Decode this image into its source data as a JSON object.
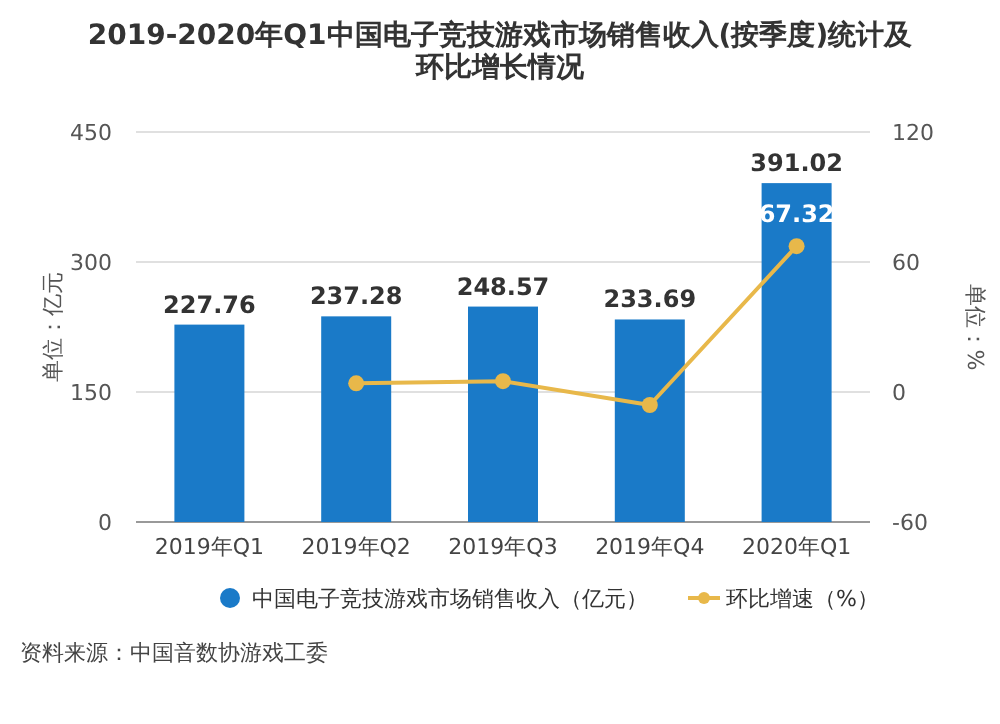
{
  "chart_data": {
    "type": "bar",
    "title": "2019-2020年Q1中国电子竞技游戏市场销售收入(按季度)统计及环比增长情况",
    "ylabel": "单位：亿元",
    "y2label": "单位：%",
    "categories": [
      "2019年Q1",
      "2019年Q2",
      "2019年Q3",
      "2019年Q4",
      "2020年Q1"
    ],
    "series": [
      {
        "name": "中国电子竞技游戏市场销售收入（亿元）",
        "color": "#1a7ac8",
        "values": [
          227.76,
          237.28,
          248.57,
          233.69,
          391.02
        ],
        "value_labels": [
          "227.76",
          "237.28",
          "248.57",
          "233.69",
          "391.02"
        ]
      },
      {
        "name": "环比增速（%）",
        "type": "line",
        "axis": "y2",
        "color": "#e8b84a",
        "marker": "circle",
        "values": [
          null,
          4,
          5,
          -6,
          67.32
        ],
        "value_labels": [
          null,
          null,
          null,
          null,
          "67.32"
        ]
      }
    ],
    "ylim": [
      0,
      450
    ],
    "yticks": [
      0,
      150,
      300,
      450
    ],
    "y2lim": [
      -60,
      120
    ],
    "y2ticks": [
      -60,
      0,
      60,
      120
    ],
    "grid": "y",
    "legend": "bottom",
    "annotations": [
      "资料来源：中国音数协游戏工委"
    ]
  }
}
